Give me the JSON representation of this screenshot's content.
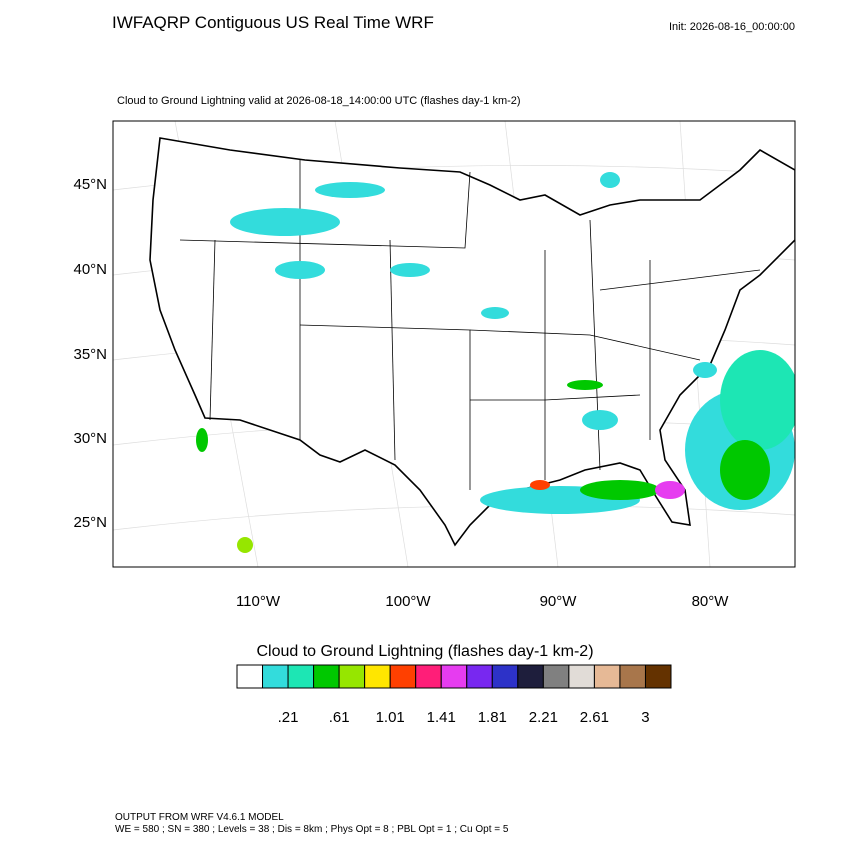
{
  "header": {
    "title": "IWFAQRP Contiguous US Real Time WRF",
    "init": "Init: 2026-08-16_00:00:00",
    "subtitle": "Cloud to Ground Lightning valid at 2026-08-18_14:00:00 UTC   (flashes day-1 km-2)"
  },
  "map": {
    "lat_labels": [
      "45°N",
      "40°N",
      "35°N",
      "30°N",
      "25°N"
    ],
    "lon_labels": [
      "110°W",
      "100°W",
      "90°W",
      "80°W"
    ]
  },
  "colorbar": {
    "title": "Cloud to Ground Lightning  (flashes day-1 km-2)",
    "colors": [
      "#ffffff",
      "#33dcdc",
      "#1de6b4",
      "#00c800",
      "#96e600",
      "#ffe600",
      "#ff4000",
      "#ff1e78",
      "#e63cf0",
      "#7828f0",
      "#2d32c8",
      "#1e1e3c",
      "#808080",
      "#e1dcd7",
      "#e6b996",
      "#a8764b",
      "#643200"
    ],
    "labels": [
      ".21",
      ".61",
      "1.01",
      "1.41",
      "1.81",
      "2.21",
      "2.61",
      "3"
    ]
  },
  "footer": {
    "line1": "OUTPUT FROM WRF V4.6.1 MODEL",
    "line2": "WE = 580 ; SN = 380 ; Levels = 38 ; Dis = 8km ; Phys Opt = 8 ; PBL Opt = 1 ; Cu Opt = 5"
  }
}
